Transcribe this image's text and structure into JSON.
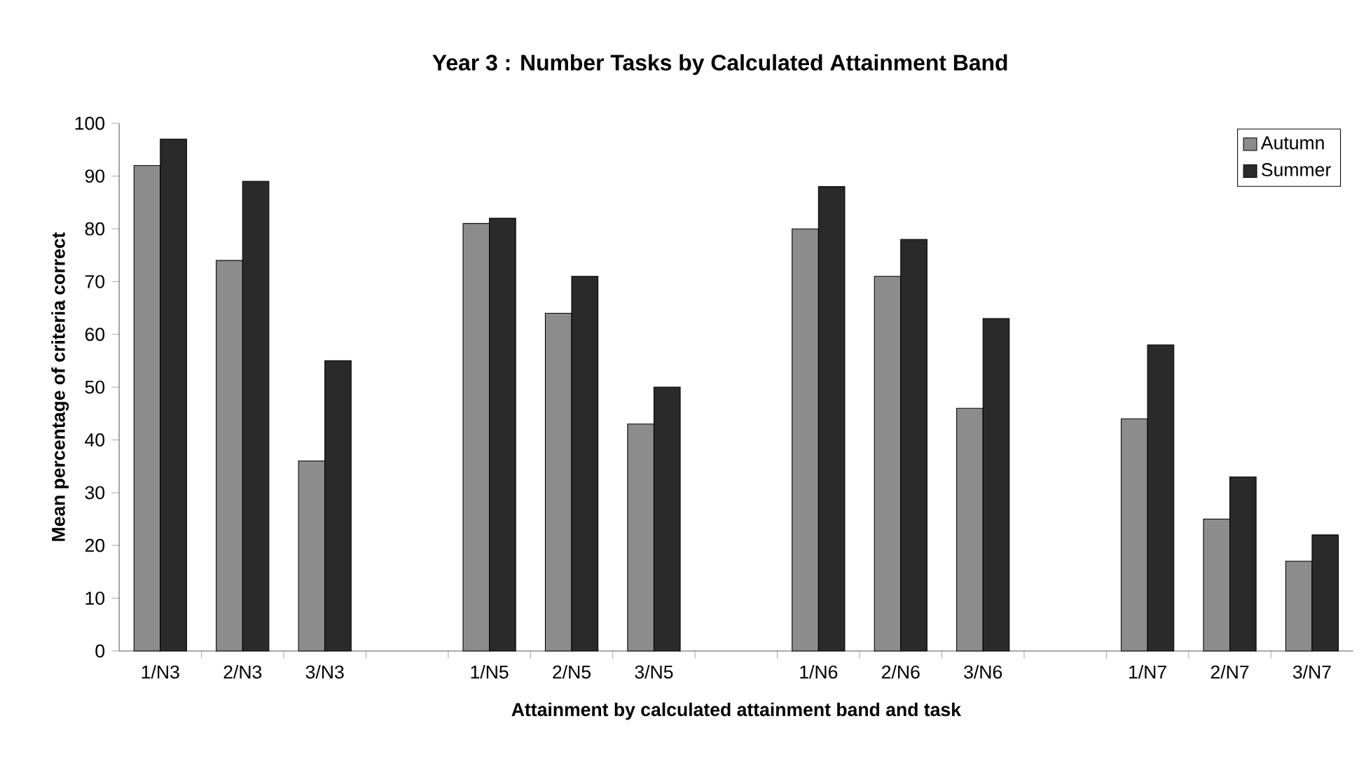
{
  "chart_data": {
    "type": "bar",
    "title": "Year 3 : Number Tasks by Calculated Attainment Band",
    "xlabel": "Attainment by calculated attainment band and task",
    "ylabel": "Mean percentage of criteria correct",
    "categories": [
      "1/N3",
      "2/N3",
      "3/N3",
      null,
      "1/N5",
      "2/N5",
      "3/N5",
      null,
      "1/N6",
      "2/N6",
      "3/N6",
      null,
      "1/N7",
      "2/N7",
      "3/N7"
    ],
    "series": [
      {
        "name": "Autumn",
        "color": "#8c8c8c",
        "values": [
          92,
          74,
          36,
          null,
          81,
          64,
          43,
          null,
          80,
          71,
          46,
          null,
          44,
          25,
          17
        ]
      },
      {
        "name": "Summer",
        "color": "#2a2a2a",
        "values": [
          97,
          89,
          55,
          null,
          82,
          71,
          50,
          null,
          88,
          78,
          63,
          null,
          58,
          33,
          22
        ]
      }
    ],
    "ylim": [
      0,
      100
    ],
    "yticks": [
      0,
      10,
      20,
      30,
      40,
      50,
      60,
      70,
      80,
      90,
      100
    ],
    "grid": false,
    "legend": "top right"
  }
}
